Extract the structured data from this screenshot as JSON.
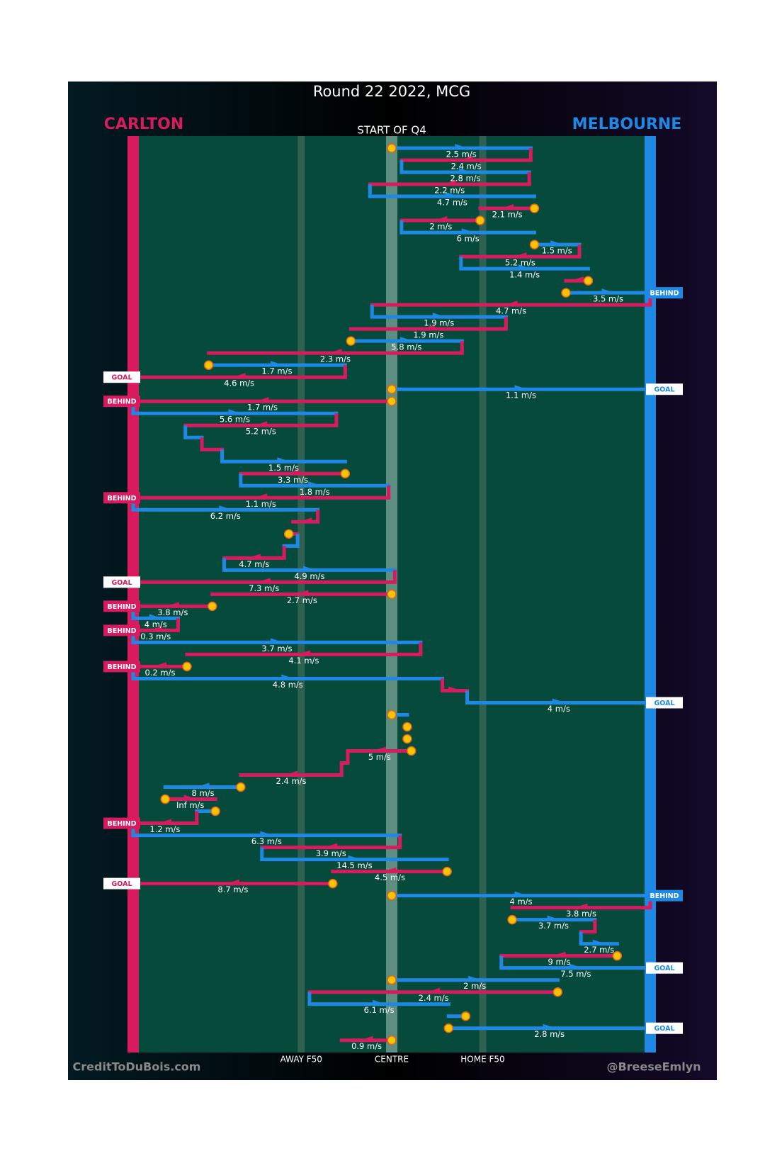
{
  "header": {
    "title": "Round 22 2022, MCG",
    "period": "START OF Q4"
  },
  "teams": [
    {
      "name": "CARLTON",
      "color": "#d81b5e"
    },
    {
      "name": "MELBOURNE",
      "color": "#1e88e5"
    }
  ],
  "field": {
    "markers": [
      {
        "label": "AWAY F50",
        "x": 32.5
      },
      {
        "label": "CENTRE",
        "x": 50
      },
      {
        "label": "HOME F50",
        "x": 67.6
      }
    ]
  },
  "moves": [
    {
      "team": 1,
      "from": 50,
      "to": 76.9,
      "label": "2.5 m/s",
      "mark": true
    },
    {
      "team": 0,
      "from": 76.9,
      "to": 51.9,
      "label": "2.4 m/s"
    },
    {
      "team": 1,
      "from": 51.9,
      "to": 76.6,
      "label": "2.8 m/s"
    },
    {
      "team": 0,
      "from": 76.6,
      "to": 45.8,
      "label": "2.2 m/s"
    },
    {
      "team": 1,
      "from": 45.8,
      "to": 77.6,
      "label": "4.7 m/s"
    },
    {
      "team": 0,
      "from": 77.6,
      "to": 67.1,
      "label": "2.1 m/s",
      "mark": true
    },
    {
      "team": 0,
      "from": 67.1,
      "to": 51.9,
      "label": "2 m/s",
      "mark": true
    },
    {
      "team": 1,
      "from": 51.9,
      "to": 77.6,
      "label": "6 m/s"
    },
    {
      "team": 1,
      "from": 77.6,
      "to": 86.3,
      "label": "1.5 m/s",
      "mark": true
    },
    {
      "team": 0,
      "from": 86.3,
      "to": 63.4,
      "label": "5.2 m/s"
    },
    {
      "team": 1,
      "from": 63.4,
      "to": 88.0,
      "label": "1.4 m/s"
    },
    {
      "team": 0,
      "from": 88.0,
      "to": 83.7,
      "label": null,
      "mark": true
    },
    {
      "team": 1,
      "from": 83.7,
      "to": 100,
      "label": "3.5 m/s",
      "mark": true,
      "outcome": "BEHIND"
    },
    {
      "team": 0,
      "from": 100,
      "to": 46.2,
      "label": "4.7 m/s"
    },
    {
      "team": 1,
      "from": 46.2,
      "to": 72.1,
      "label": "1.9 m/s"
    },
    {
      "team": 0,
      "from": 72.1,
      "to": 42.1,
      "label": "1.9 m/s"
    },
    {
      "team": 1,
      "from": 42.1,
      "to": 63.6,
      "label": "5.8 m/s",
      "mark": true
    },
    {
      "team": 0,
      "from": 63.6,
      "to": 14.6,
      "label": "2.3 m/s"
    },
    {
      "team": 1,
      "from": 14.6,
      "to": 41.0,
      "label": "1.7 m/s",
      "mark": true
    },
    {
      "team": 0,
      "from": 41.0,
      "to": 0,
      "label": "4.6 m/s",
      "outcome": "GOAL"
    },
    {
      "team": 1,
      "from": 50,
      "to": 100,
      "label": "1.1 m/s",
      "mark": true,
      "outcome": "GOAL"
    },
    {
      "team": 0,
      "from": 50,
      "to": 0,
      "label": "1.7 m/s",
      "mark": true,
      "outcome": "BEHIND"
    },
    {
      "team": 1,
      "from": 0,
      "to": 39.3,
      "label": "5.6 m/s"
    },
    {
      "team": 0,
      "from": 39.3,
      "to": 10.1,
      "label": "5.2 m/s"
    },
    {
      "team": 1,
      "from": 10.1,
      "to": 13.3,
      "label": null
    },
    {
      "team": 0,
      "from": 13.3,
      "to": 17.2,
      "label": null
    },
    {
      "team": 1,
      "from": 17.2,
      "to": 41.0,
      "label": "1.5 m/s"
    },
    {
      "team": 0,
      "from": 41.0,
      "to": 20.8,
      "label": "3.3 m/s",
      "mark": true
    },
    {
      "team": 1,
      "from": 20.8,
      "to": 49.4,
      "label": "1.8 m/s"
    },
    {
      "team": 0,
      "from": 49.4,
      "to": 0,
      "label": "1.1 m/s",
      "outcome": "BEHIND"
    },
    {
      "team": 1,
      "from": 0,
      "to": 35.7,
      "label": "6.2 m/s"
    },
    {
      "team": 0,
      "from": 35.7,
      "to": 30.9,
      "label": null
    },
    {
      "team": 0,
      "from": 30.1,
      "to": 31.8,
      "label": null,
      "mark": true
    },
    {
      "team": 1,
      "from": 31.8,
      "to": 29.2,
      "label": null
    },
    {
      "team": 0,
      "from": 29.2,
      "to": 17.6,
      "label": "4.7 m/s"
    },
    {
      "team": 1,
      "from": 17.6,
      "to": 50.6,
      "label": "4.9 m/s"
    },
    {
      "team": 0,
      "from": 50.6,
      "to": 0,
      "label": "7.3 m/s",
      "outcome": "GOAL"
    },
    {
      "team": 0,
      "from": 50,
      "to": 15.3,
      "label": "2.7 m/s",
      "mark": true
    },
    {
      "team": 0,
      "from": 15.3,
      "to": 0,
      "label": "3.8 m/s",
      "mark": true,
      "outcome": "BEHIND"
    },
    {
      "team": 1,
      "from": 0,
      "to": 8.7,
      "label": "4 m/s"
    },
    {
      "team": 0,
      "from": 8.7,
      "to": 0,
      "label": "0.3 m/s",
      "outcome": "BEHIND"
    },
    {
      "team": 1,
      "from": 0,
      "to": 55.6,
      "label": "3.7 m/s"
    },
    {
      "team": 0,
      "from": 55.6,
      "to": 10.4,
      "label": "4.1 m/s"
    },
    {
      "team": 0,
      "from": 10.4,
      "to": 0,
      "label": "0.2 m/s",
      "mark": true,
      "outcome": "BEHIND"
    },
    {
      "team": 1,
      "from": 0,
      "to": 59.8,
      "label": "4.8 m/s"
    },
    {
      "team": 0,
      "from": 59.8,
      "to": 64.6,
      "label": null
    },
    {
      "team": 1,
      "from": 64.6,
      "to": 100,
      "label": "4 m/s",
      "outcome": "GOAL"
    },
    {
      "team": 1,
      "from": 50,
      "to": 53.0,
      "label": null,
      "mark": true
    },
    {
      "team": 1,
      "from": 53.0,
      "to": 53.0,
      "label": null,
      "mark": true
    },
    {
      "team": 1,
      "from": 53.0,
      "to": 53.0,
      "label": null,
      "mark": true
    },
    {
      "team": 0,
      "from": 53.8,
      "to": 41.5,
      "label": "5 m/s",
      "mark": true
    },
    {
      "team": 0,
      "from": 41.5,
      "to": 40.3,
      "label": null
    },
    {
      "team": 0,
      "from": 40.3,
      "to": 20.8,
      "label": "2.4 m/s"
    },
    {
      "team": 1,
      "from": 20.8,
      "to": 6.2,
      "label": "8 m/s",
      "mark": true
    },
    {
      "team": 0,
      "from": 6.2,
      "to": 15.9,
      "label": "Inf m/s",
      "mark": true
    },
    {
      "team": 1,
      "from": 15.9,
      "to": 12.3,
      "label": null,
      "mark": true
    },
    {
      "team": 0,
      "from": 12.3,
      "to": 0,
      "label": "1.2 m/s",
      "outcome": "BEHIND"
    },
    {
      "team": 1,
      "from": 0,
      "to": 51.6,
      "label": "6.3 m/s"
    },
    {
      "team": 0,
      "from": 51.6,
      "to": 24.9,
      "label": "3.9 m/s"
    },
    {
      "team": 1,
      "from": 24.9,
      "to": 60.7,
      "label": "14.5 m/s"
    },
    {
      "team": 0,
      "from": 60.7,
      "to": 38.6,
      "label": "4.5 m/s",
      "mark": true
    },
    {
      "team": 0,
      "from": 38.6,
      "to": 0,
      "label": "8.7 m/s",
      "mark": true,
      "outcome": "GOAL"
    },
    {
      "team": 1,
      "from": 50,
      "to": 100,
      "label": "4 m/s",
      "mark": true,
      "outcome": "BEHIND"
    },
    {
      "team": 0,
      "from": 100,
      "to": 73.3,
      "label": "3.8 m/s"
    },
    {
      "team": 1,
      "from": 73.3,
      "to": 89.3,
      "label": "3.7 m/s",
      "mark": true
    },
    {
      "team": 0,
      "from": 89.3,
      "to": 86.6,
      "label": null
    },
    {
      "team": 1,
      "from": 86.6,
      "to": 93.6,
      "label": "2.7 m/s"
    },
    {
      "team": 0,
      "from": 93.6,
      "to": 71.2,
      "label": "9 m/s",
      "mark": true
    },
    {
      "team": 1,
      "from": 71.2,
      "to": 100,
      "label": "7.5 m/s",
      "outcome": "GOAL"
    },
    {
      "team": 1,
      "from": 50,
      "to": 82.1,
      "label": "2 m/s",
      "mark": true
    },
    {
      "team": 0,
      "from": 82.1,
      "to": 34.1,
      "label": "2.4 m/s",
      "mark": true
    },
    {
      "team": 1,
      "from": 34.1,
      "to": 61.0,
      "label": "6.1 m/s"
    },
    {
      "team": 1,
      "from": 64.3,
      "to": 61.0,
      "label": null,
      "mark": true
    },
    {
      "team": 1,
      "from": 61.0,
      "to": 100,
      "label": "2.8 m/s",
      "mark": true,
      "outcome": "GOAL"
    },
    {
      "team": 0,
      "from": 50,
      "to": 40.3,
      "label": "0.9 m/s",
      "mark": true
    }
  ],
  "footer": {
    "credit": "CreditToDuBois.com",
    "handle": "@BreeseEmlyn"
  }
}
